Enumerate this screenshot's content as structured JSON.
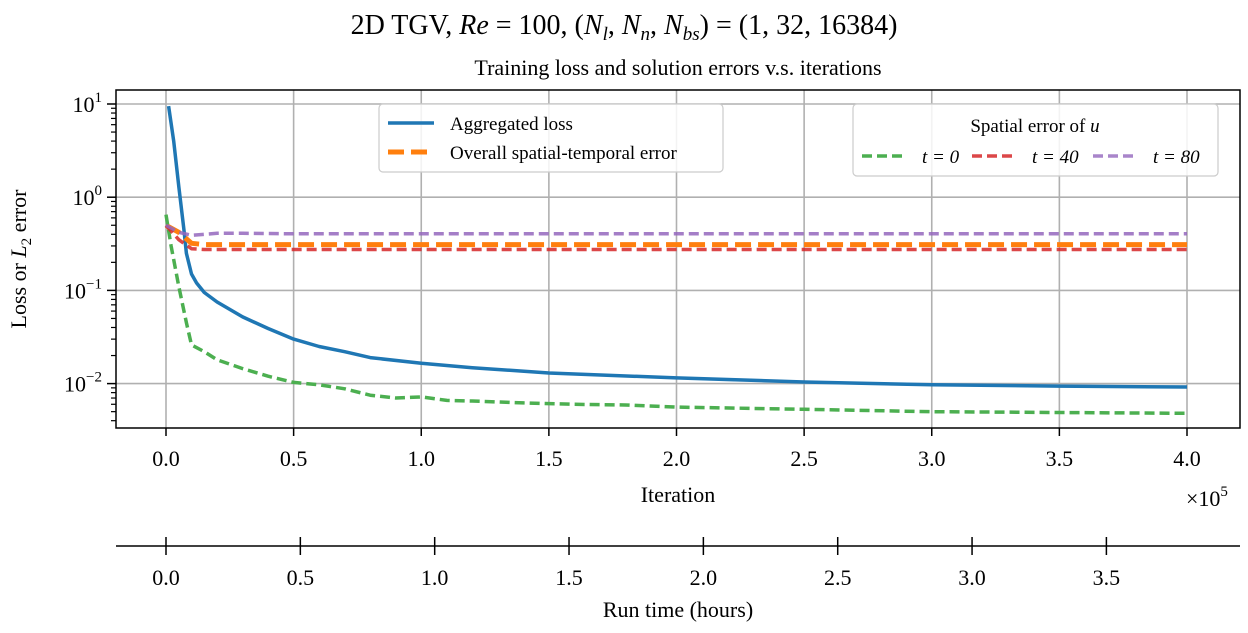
{
  "suptitle": {
    "prefix": "2D TGV, ",
    "re_sym": "Re",
    "re_val": " = 100, (",
    "nl": "N",
    "nl_sub": "l",
    "sep1": ", ",
    "nn": "N",
    "nn_sub": "n",
    "sep2": ", ",
    "nbs": "N",
    "nbs_sub": "bs",
    "suffix": ") = (1, 32, 16384)"
  },
  "chart_data": {
    "type": "line",
    "title": "Training loss and solution errors v.s. iterations",
    "xlabel": "Iteration",
    "x_multiplier_label": "×10",
    "x_multiplier_exp": "5",
    "ylabel_prefix": "Loss or ",
    "ylabel_sym": "L",
    "ylabel_sub": "2",
    "ylabel_suffix": " error",
    "yscale": "log",
    "xlim": [
      -0.2,
      4.2
    ],
    "ylim": [
      0.0033,
      14
    ],
    "grid": true,
    "xticks": [
      0.0,
      0.5,
      1.0,
      1.5,
      2.0,
      2.5,
      3.0,
      3.5,
      4.0
    ],
    "xtick_labels": [
      "0.0",
      "0.5",
      "1.0",
      "1.5",
      "2.0",
      "2.5",
      "3.0",
      "3.5",
      "4.0"
    ],
    "yticks": [
      0.01,
      0.1,
      1,
      10
    ],
    "ytick_exps": [
      "−2",
      "−1",
      "0",
      "1"
    ],
    "ytick_base": "10",
    "series": [
      {
        "name": "Aggregated loss",
        "color": "#1f77b4",
        "dash": "solid",
        "legend": "main",
        "x": [
          0.01,
          0.03,
          0.05,
          0.07,
          0.08,
          0.1,
          0.12,
          0.15,
          0.2,
          0.3,
          0.4,
          0.5,
          0.6,
          0.7,
          0.8,
          1.0,
          1.2,
          1.5,
          2.0,
          2.5,
          3.0,
          3.5,
          4.0
        ],
        "y": [
          9.5,
          4.0,
          1.3,
          0.45,
          0.25,
          0.15,
          0.12,
          0.095,
          0.075,
          0.052,
          0.039,
          0.03,
          0.025,
          0.022,
          0.019,
          0.0165,
          0.0148,
          0.013,
          0.0115,
          0.0104,
          0.0097,
          0.0094,
          0.0092
        ]
      },
      {
        "name": "Overall spatial-temporal error",
        "color": "#ff7f0e",
        "dash": "long",
        "legend": "main",
        "x": [
          0.0,
          0.05,
          0.1,
          0.15,
          0.2,
          0.5,
          1.0,
          2.0,
          3.0,
          4.0
        ],
        "y": [
          0.5,
          0.42,
          0.32,
          0.31,
          0.31,
          0.31,
          0.31,
          0.31,
          0.31,
          0.31
        ]
      },
      {
        "name": "t = 0",
        "color": "#4caf50",
        "dash": "dash",
        "legend": "spatial",
        "x": [
          0.0,
          0.02,
          0.05,
          0.08,
          0.1,
          0.15,
          0.2,
          0.3,
          0.4,
          0.5,
          0.6,
          0.7,
          0.8,
          0.9,
          1.0,
          1.1,
          1.2,
          1.4,
          1.6,
          1.8,
          2.0,
          2.5,
          3.0,
          3.5,
          4.0
        ],
        "y": [
          0.65,
          0.3,
          0.11,
          0.045,
          0.026,
          0.022,
          0.018,
          0.0145,
          0.012,
          0.0103,
          0.0097,
          0.0088,
          0.0075,
          0.007,
          0.0072,
          0.0066,
          0.0065,
          0.0062,
          0.006,
          0.0059,
          0.0056,
          0.0053,
          0.005,
          0.0049,
          0.0048
        ]
      },
      {
        "name": "t = 40",
        "color": "#d62728",
        "dash": "dash",
        "legend": "spatial",
        "x": [
          0.0,
          0.05,
          0.1,
          0.15,
          0.2,
          0.5,
          1.0,
          2.0,
          3.0,
          4.0
        ],
        "y": [
          0.5,
          0.35,
          0.28,
          0.275,
          0.275,
          0.275,
          0.275,
          0.275,
          0.275,
          0.275
        ]
      },
      {
        "name": "t = 80",
        "color": "#9467bd",
        "dash": "dash",
        "legend": "spatial",
        "x": [
          0.0,
          0.05,
          0.1,
          0.15,
          0.2,
          0.3,
          0.5,
          1.0,
          2.0,
          3.0,
          4.0
        ],
        "y": [
          0.5,
          0.42,
          0.39,
          0.4,
          0.41,
          0.41,
          0.405,
          0.405,
          0.405,
          0.405,
          0.405
        ]
      }
    ],
    "legend_main": {
      "location": "upper-center"
    },
    "legend_spatial": {
      "title_prefix": "Spatial error of ",
      "title_sym": "u",
      "location": "upper-right",
      "ncol": 3
    },
    "secondary_axis": {
      "label": "Run time (hours)",
      "ticks": [
        0.0,
        0.5,
        1.0,
        1.5,
        2.0,
        2.5,
        3.0,
        3.5
      ],
      "tick_labels": [
        "0.0",
        "0.5",
        "1.0",
        "1.5",
        "2.0",
        "2.5",
        "3.0",
        "3.5"
      ],
      "hours_at_max_iteration": 3.8
    }
  }
}
